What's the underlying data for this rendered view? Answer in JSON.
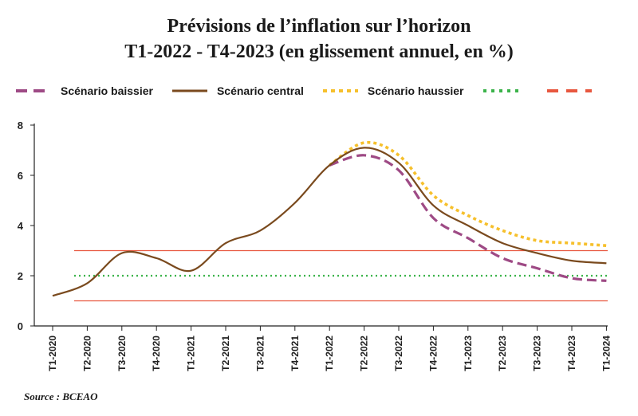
{
  "title_line1": "Prévisions de l’inflation sur l’horizon",
  "title_line2": "T1-2022 - T4-2023 (en glissement annuel, en  %)",
  "source": "Source : BCEAO",
  "chart_data": {
    "type": "line",
    "title": "Prévisions de l’inflation sur l’horizon T1-2022 - T4-2023 (en glissement annuel, en  %)",
    "xlabel": "",
    "ylabel": "",
    "categories": [
      "T1-2020",
      "T2-2020",
      "T3-2020",
      "T4-2020",
      "T1-2021",
      "T2-2021",
      "T3-2021",
      "T4-2021",
      "T1-2022",
      "T2-2022",
      "T3-2022",
      "T4-2022",
      "T1-2023",
      "T2-2023",
      "T3-2023",
      "T4-2023",
      "T1-2024"
    ],
    "ylim": [
      0,
      8
    ],
    "yticks": [
      0,
      2,
      4,
      6,
      8
    ],
    "grid": false,
    "legend_position": "top-left",
    "series": [
      {
        "name": "Scénario baissier",
        "style": "dashed",
        "color": "#9e4a85",
        "values": [
          null,
          null,
          null,
          null,
          null,
          null,
          null,
          null,
          6.4,
          6.8,
          6.2,
          4.3,
          3.5,
          2.7,
          2.3,
          1.9,
          1.8
        ]
      },
      {
        "name": "Scénario central",
        "style": "solid",
        "color": "#7a4a1e",
        "values": [
          1.2,
          1.7,
          2.9,
          2.7,
          2.2,
          3.3,
          3.8,
          4.9,
          6.4,
          7.1,
          6.5,
          4.8,
          4.0,
          3.3,
          2.9,
          2.6,
          2.5
        ]
      },
      {
        "name": "Scénario haussier",
        "style": "dotted",
        "color": "#f6c02c",
        "values": [
          null,
          null,
          null,
          null,
          null,
          null,
          null,
          null,
          6.4,
          7.3,
          6.8,
          5.2,
          4.4,
          3.8,
          3.4,
          3.3,
          3.2
        ]
      },
      {
        "name": "",
        "style": "dotted",
        "color": "#3bb34a",
        "constant": 2
      },
      {
        "name": "",
        "style": "dashed",
        "color": "#e8573f",
        "band": [
          1,
          3
        ]
      }
    ]
  }
}
